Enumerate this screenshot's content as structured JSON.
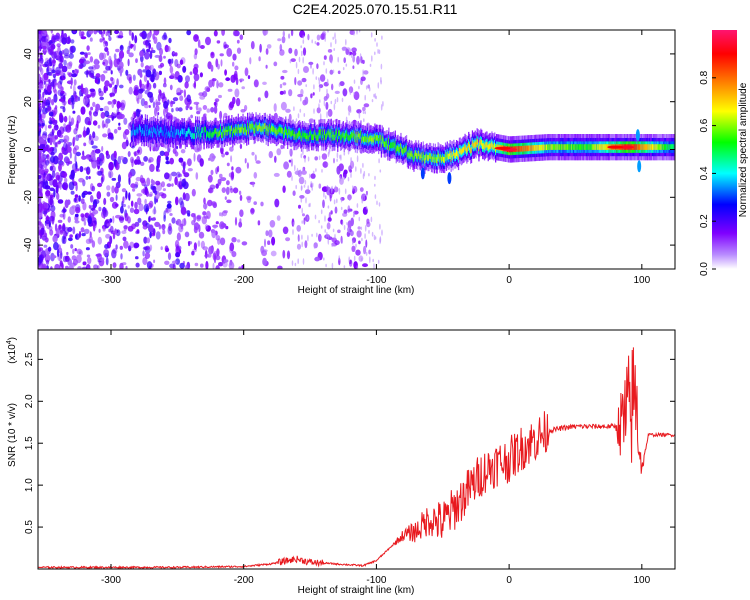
{
  "figure_title": "C2E4.2025.070.15.51.R11",
  "chart_data": [
    {
      "type": "heatmap",
      "title": "C2E4.2025.070.15.51.R11",
      "xlabel": "Height of straight line (km)",
      "ylabel": "Frequency (Hz)",
      "xlim": [
        -355,
        125
      ],
      "ylim": [
        -50,
        50
      ],
      "x_ticks": [
        -300,
        -200,
        -100,
        0,
        100
      ],
      "y_ticks": [
        -40,
        -20,
        0,
        20,
        40
      ],
      "x_tick_labels": [
        "-300",
        "-200",
        "-100",
        "0",
        "100"
      ],
      "y_tick_labels": [
        "-40",
        "-20",
        "0",
        "20",
        "40"
      ],
      "colorbar": {
        "label": "Normalized spectral amplitude",
        "range": [
          0,
          1
        ],
        "ticks": [
          0.0,
          0.2,
          0.4,
          0.6,
          0.8
        ],
        "tick_labels": [
          "0.0",
          "0.2",
          "0.4",
          "0.6",
          "0.8"
        ],
        "colormap": [
          "#ffffff",
          "#7f00ff",
          "#0000ff",
          "#00ffff",
          "#00ff00",
          "#ffff00",
          "#ff7f00",
          "#ff0000",
          "#ff1493"
        ]
      },
      "ridge": {
        "description_points": [
          {
            "x": -280,
            "freq": 8,
            "amp": 0.35
          },
          {
            "x": -250,
            "freq": 7,
            "amp": 0.35
          },
          {
            "x": -220,
            "freq": 7,
            "amp": 0.55
          },
          {
            "x": -190,
            "freq": 9,
            "amp": 0.6
          },
          {
            "x": -160,
            "freq": 6,
            "amp": 0.55
          },
          {
            "x": -130,
            "freq": 6,
            "amp": 0.55
          },
          {
            "x": -105,
            "freq": 5,
            "amp": 0.6
          },
          {
            "x": -85,
            "freq": 1,
            "amp": 0.55
          },
          {
            "x": -70,
            "freq": -3,
            "amp": 0.6
          },
          {
            "x": -55,
            "freq": -4,
            "amp": 0.6
          },
          {
            "x": -40,
            "freq": -2,
            "amp": 0.65
          },
          {
            "x": -25,
            "freq": 2,
            "amp": 0.7
          },
          {
            "x": -10,
            "freq": 1,
            "amp": 0.65
          },
          {
            "x": 0,
            "freq": 0,
            "amp": 0.9
          },
          {
            "x": 30,
            "freq": 1,
            "amp": 0.6
          },
          {
            "x": 60,
            "freq": 1,
            "amp": 0.55
          },
          {
            "x": 90,
            "freq": 1,
            "amp": 0.9
          },
          {
            "x": 120,
            "freq": 1,
            "amp": 0.5
          }
        ]
      }
    },
    {
      "type": "line",
      "xlabel": "Height of straight line (km)",
      "ylabel": "SNR (10 * v/v)",
      "y_multiplier_label": "(x10",
      "y_multiplier_exp": "4",
      "xlim": [
        -355,
        125
      ],
      "ylim": [
        0,
        2.85
      ],
      "x_ticks": [
        -300,
        -200,
        -100,
        0,
        100
      ],
      "y_ticks": [
        0.5,
        1.0,
        1.5,
        2.0,
        2.5
      ],
      "x_tick_labels": [
        "-300",
        "-200",
        "-100",
        "0",
        "100"
      ],
      "y_tick_labels": [
        "0.5",
        "1.0",
        "1.5",
        "2.0",
        "2.5"
      ],
      "series": [
        {
          "color": "#e8191e",
          "x": [
            -355,
            -300,
            -250,
            -200,
            -180,
            -160,
            -150,
            -130,
            -110,
            -100,
            -90,
            -80,
            -70,
            -60,
            -50,
            -40,
            -30,
            -20,
            -10,
            0,
            10,
            20,
            30,
            40,
            50,
            60,
            70,
            80,
            85,
            90,
            95,
            100,
            105,
            110,
            125
          ],
          "y": [
            0.02,
            0.02,
            0.02,
            0.03,
            0.06,
            0.12,
            0.08,
            0.06,
            0.04,
            0.1,
            0.25,
            0.4,
            0.45,
            0.6,
            0.55,
            0.75,
            0.95,
            1.15,
            1.25,
            1.3,
            1.45,
            1.55,
            1.65,
            1.68,
            1.7,
            1.7,
            1.7,
            1.7,
            1.72,
            1.8,
            2.1,
            1.2,
            1.6,
            1.6,
            1.6
          ]
        }
      ]
    }
  ]
}
